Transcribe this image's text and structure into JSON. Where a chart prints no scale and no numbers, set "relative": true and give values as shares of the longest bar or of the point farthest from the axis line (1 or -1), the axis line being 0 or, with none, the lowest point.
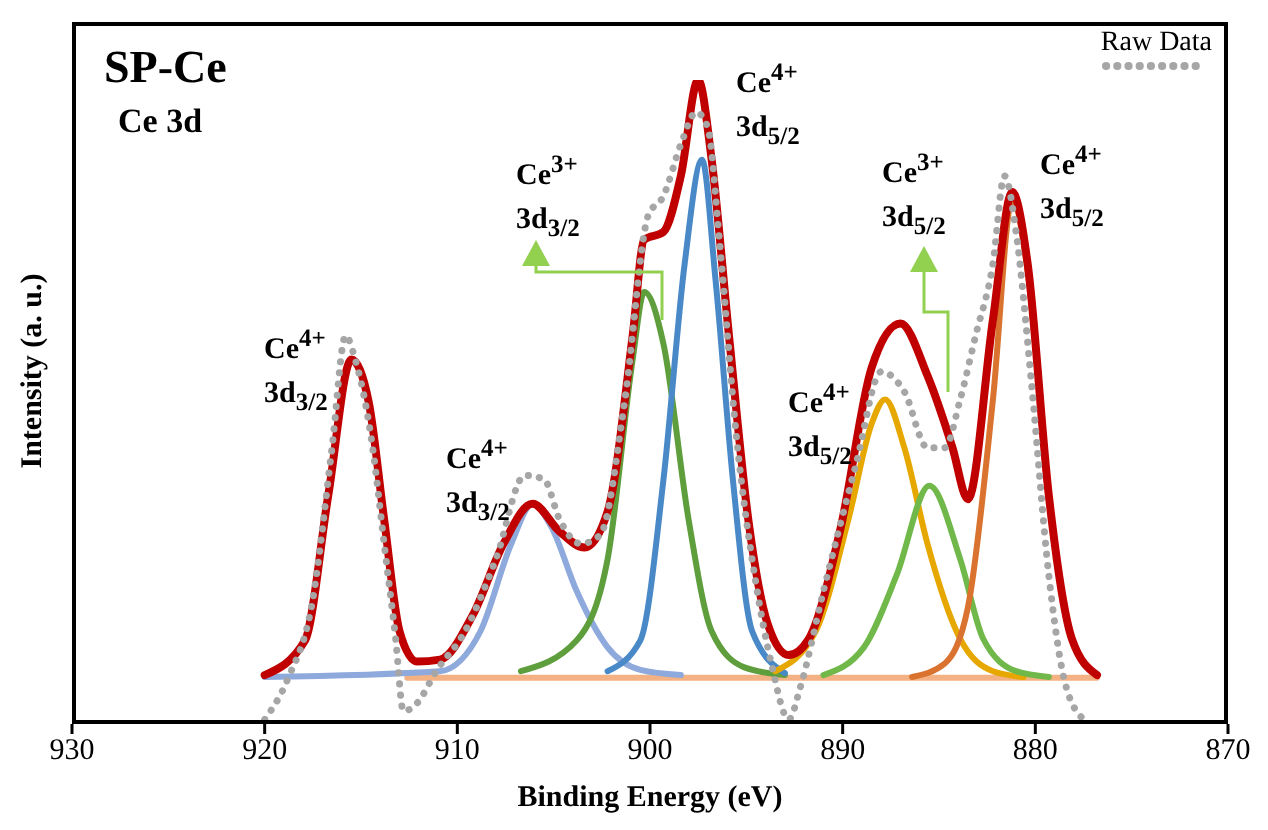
{
  "chart_data": {
    "type": "line",
    "title": "SP-Ce",
    "subtitle": "Ce 3d",
    "xlabel": "Binding Energy (eV)",
    "ylabel": "Intensity (a. u.)",
    "relative": true,
    "tick_labels": "x",
    "legend": "top right",
    "xlim": [
      930,
      870
    ],
    "xticks": [
      930,
      920,
      910,
      900,
      890,
      880,
      870
    ],
    "series": [
      {
        "color": "#f4b183",
        "x": [
          912.6,
          900,
          890,
          876.8
        ],
        "values": [
          0.072,
          0.072,
          0.072,
          0.072
        ]
      },
      {
        "color": "#8ea9db",
        "x": [
          920,
          910.9,
          908.8,
          907.2,
          906.1,
          905.1,
          903.8,
          902.2,
          900.5,
          898.4
        ],
        "values": [
          0.073,
          0.082,
          0.144,
          0.28,
          0.342,
          0.305,
          0.206,
          0.119,
          0.084,
          0.076
        ]
      },
      {
        "color": "#5e9e3c",
        "x": [
          906.7,
          903.8,
          902.2,
          900.9,
          900.3,
          899.3,
          898,
          896.8,
          895.1,
          893
        ],
        "values": [
          0.082,
          0.13,
          0.256,
          0.566,
          0.671,
          0.59,
          0.318,
          0.144,
          0.088,
          0.076
        ]
      },
      {
        "color": "#4a89c8",
        "x": [
          902.2,
          900.5,
          899.3,
          898.2,
          897.3,
          896.6,
          895.7,
          894.7,
          893
        ],
        "values": [
          0.082,
          0.13,
          0.38,
          0.715,
          0.876,
          0.69,
          0.38,
          0.144,
          0.079
        ]
      },
      {
        "color": "#e6a800",
        "x": [
          893.5,
          891.4,
          889.7,
          888.5,
          887.8,
          886.8,
          885.6,
          883.9,
          882.2,
          880.6
        ],
        "values": [
          0.082,
          0.144,
          0.318,
          0.466,
          0.504,
          0.429,
          0.28,
          0.132,
          0.082,
          0.073
        ]
      },
      {
        "color": "#70b84a",
        "x": [
          891,
          888.9,
          887.2,
          885.5,
          883.9,
          882.7,
          881,
          879.3
        ],
        "values": [
          0.076,
          0.119,
          0.231,
          0.37,
          0.256,
          0.132,
          0.082,
          0.073
        ]
      },
      {
        "color": "#d9732f",
        "x": [
          886.4,
          884.7,
          883.5,
          882.2,
          881.2,
          880.4,
          879.3,
          878.1,
          876.8
        ],
        "values": [
          0.073,
          0.094,
          0.181,
          0.504,
          0.814,
          0.703,
          0.355,
          0.132,
          0.076
        ]
      },
      {
        "color": "#c00000",
        "x": [
          920,
          917.9,
          916.7,
          915.5,
          914.6,
          913.8,
          913,
          912.1,
          910.9,
          909.2,
          907.6,
          906.1,
          904.7,
          903.4,
          902.2,
          900.9,
          900.3,
          899.3,
          898.4,
          897.5,
          896.8,
          895.9,
          894.9,
          893.9,
          892.8,
          891.8,
          890.1,
          888.5,
          887,
          885.6,
          884.3,
          883.5,
          882.2,
          881.2,
          880.4,
          879.3,
          878.1,
          876.8
        ],
        "values": [
          0.076,
          0.13,
          0.355,
          0.566,
          0.5,
          0.318,
          0.144,
          0.097,
          0.1,
          0.169,
          0.28,
          0.342,
          0.299,
          0.274,
          0.33,
          0.603,
          0.752,
          0.764,
          0.851,
          1,
          0.876,
          0.603,
          0.318,
          0.156,
          0.107,
          0.13,
          0.305,
          0.553,
          0.622,
          0.541,
          0.429,
          0.349,
          0.628,
          0.826,
          0.715,
          0.355,
          0.132,
          0.076
        ]
      },
      {
        "name": "Raw Data",
        "color": "#a6a6a6",
        "line_style": "dotted",
        "x": [
          920,
          918.8,
          917.5,
          916.5,
          915.8,
          915.3,
          914.4,
          913.8,
          913.2,
          912.8,
          912.1,
          911.1,
          909.6,
          908,
          906.5,
          905.5,
          904.7,
          903.6,
          902.6,
          901.3,
          900.1,
          899.3,
          898.4,
          897.6,
          897,
          896.4,
          895.5,
          894.5,
          893.7,
          892.8,
          892.2,
          891,
          889.3,
          888,
          886.8,
          885.6,
          884.7,
          883.9,
          883.1,
          882.2,
          881.6,
          881,
          880.2,
          879.3,
          878.5,
          877.5
        ],
        "values": [
          0.007,
          0.07,
          0.194,
          0.43,
          0.603,
          0.566,
          0.43,
          0.28,
          0.132,
          0.02,
          0.032,
          0.082,
          0.144,
          0.256,
          0.386,
          0.38,
          0.318,
          0.28,
          0.293,
          0.504,
          0.789,
          0.82,
          0.9,
          0.95,
          0.926,
          0.752,
          0.442,
          0.218,
          0.094,
          0.007,
          0.057,
          0.206,
          0.404,
          0.547,
          0.516,
          0.429,
          0.429,
          0.504,
          0.603,
          0.715,
          0.851,
          0.764,
          0.529,
          0.231,
          0.069,
          0.007
        ]
      }
    ],
    "annotations": [
      "Ce$^{4+}$\n3d$_{3/2}$",
      "Ce$^{4+}$\n3d$_{3/2}$",
      "Ce$^{3+}$\n3d$_{3/2}$",
      "Ce$^{4+}$\n3d$_{5/2}$",
      "Ce$^{4+}$\n3d$_{5/2}$",
      "Ce$^{3+}$\n3d$_{5/2}$",
      "Ce$^{4+}$\n3d$_{5/2}$"
    ]
  }
}
